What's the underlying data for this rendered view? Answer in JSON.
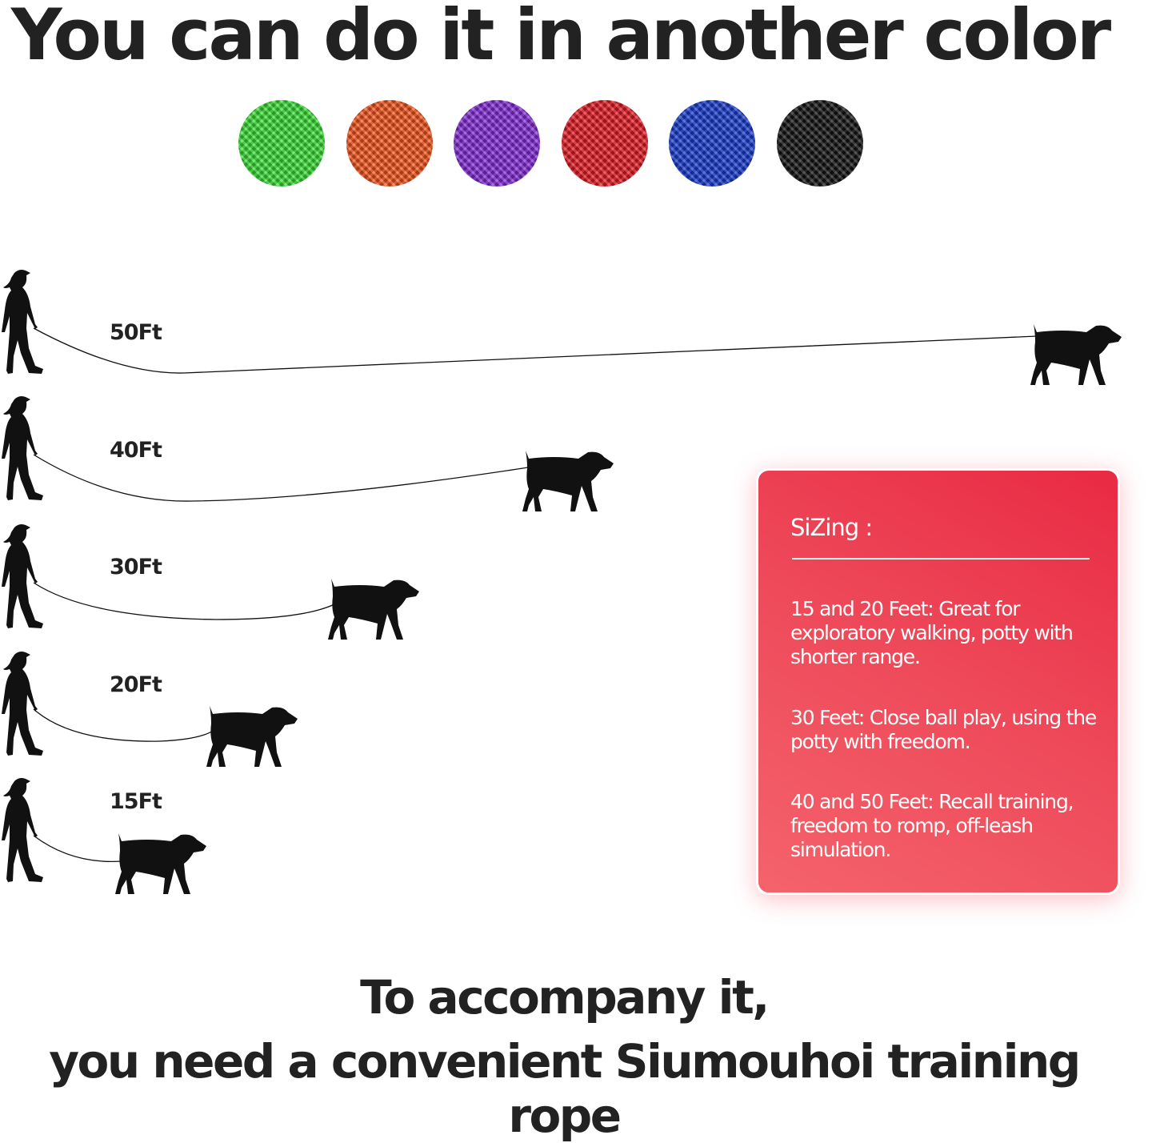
{
  "title": "You can do it in another color",
  "colors": [
    {
      "name": "green",
      "hex": "#3fe83a"
    },
    {
      "name": "orange",
      "hex": "#ff5a1f"
    },
    {
      "name": "purple",
      "hex": "#8a2fe0"
    },
    {
      "name": "red",
      "hex": "#ee1d27"
    },
    {
      "name": "blue",
      "hex": "#1b3fd8"
    },
    {
      "name": "black",
      "hex": "#141414"
    }
  ],
  "lengths": [
    "50Ft",
    "40Ft",
    "30Ft",
    "20Ft",
    "15Ft"
  ],
  "sizing_card": {
    "title": "SiZing :",
    "items": [
      "15 and 20 Feet: Great for exploratory walking, potty with shorter range.",
      "30 Feet: Close ball play, using the potty with freedom.",
      "40 and 50 Feet: Recall training, freedom to romp, off-leash simulation."
    ]
  },
  "tagline": {
    "line1": "To accompany it,",
    "line2": "you need a convenient Siumouhoi training rope"
  }
}
